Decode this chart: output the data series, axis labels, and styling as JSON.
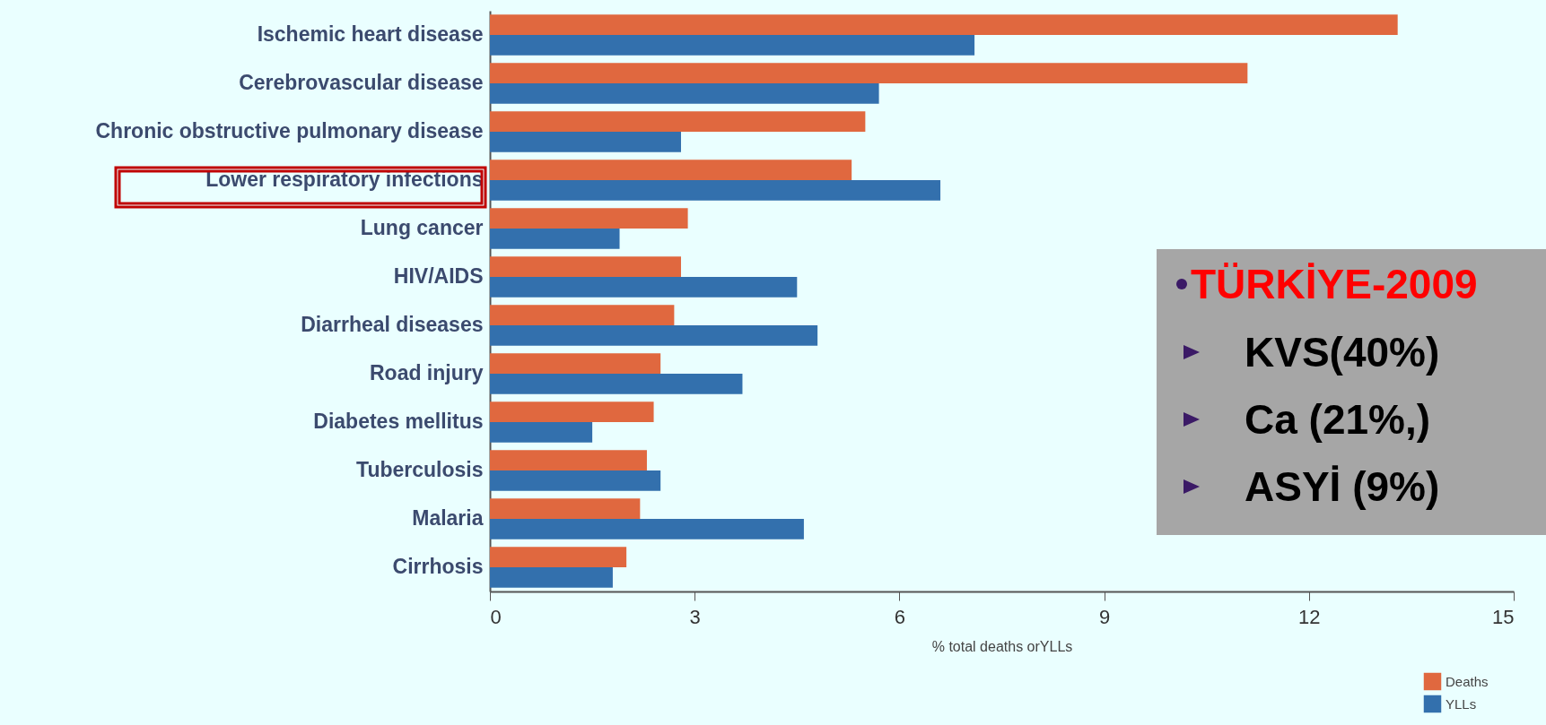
{
  "chart_data": {
    "type": "bar",
    "orientation": "horizontal",
    "categories": [
      "Ischemic heart disease",
      "Cerebrovascular disease",
      "Chronic obstructive pulmonary disease",
      "Lower respiratory infections",
      "Lung cancer",
      "HIV/AIDS",
      "Diarrheal diseases",
      "Road injury",
      "Diabetes mellitus",
      "Tuberculosis",
      "Malaria",
      "Cirrhosis"
    ],
    "series": [
      {
        "name": "Deaths",
        "color": "#e0683f",
        "values": [
          13.3,
          11.1,
          5.5,
          5.3,
          2.9,
          2.8,
          2.7,
          2.5,
          2.4,
          2.3,
          2.2,
          2.0
        ]
      },
      {
        "name": "YLLs",
        "color": "#3370ad",
        "values": [
          7.1,
          5.7,
          2.8,
          6.6,
          1.9,
          4.5,
          4.8,
          3.7,
          1.5,
          2.5,
          4.6,
          1.8
        ]
      }
    ],
    "xlim": [
      0,
      15
    ],
    "xticks": [
      0,
      3,
      6,
      9,
      12,
      15
    ],
    "xlabel": "% total deaths orYLLs",
    "legend": "bottom right",
    "grid": false,
    "annotations": [
      "TÜRKİYE-2009",
      "KVS(40%)",
      "Ca (21%,)",
      "ASYİ (9%)"
    ]
  }
}
